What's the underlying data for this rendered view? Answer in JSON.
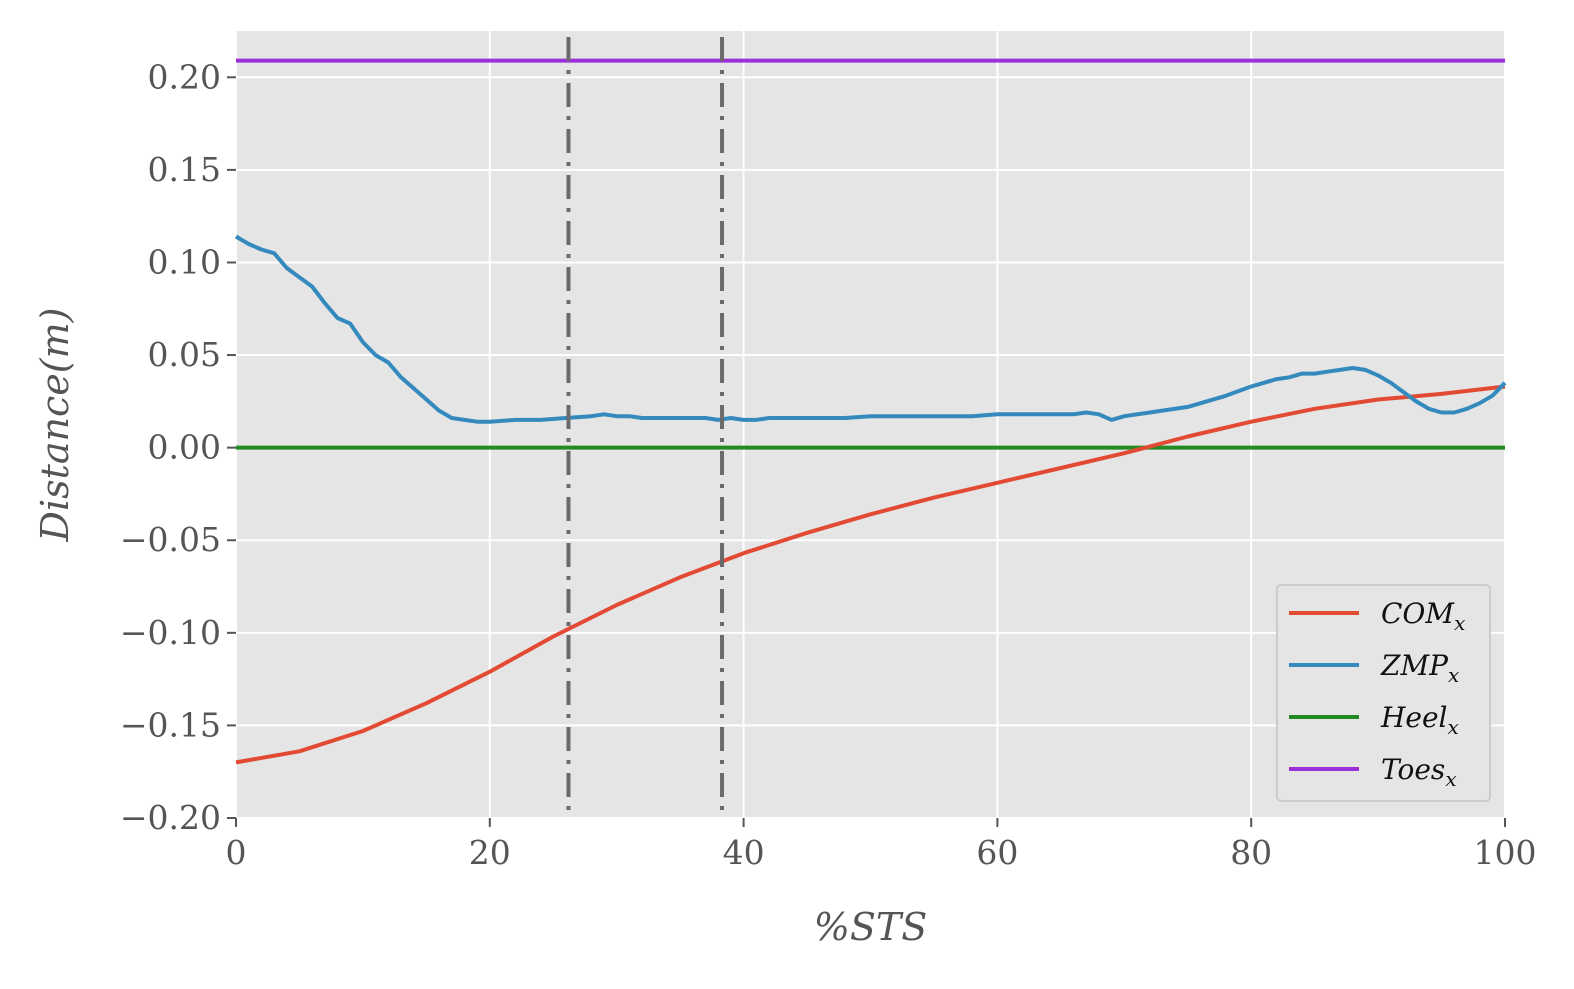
{
  "chart_data": {
    "type": "line",
    "xlabel": "%STS",
    "ylabel": "Distance(m)",
    "xlim": [
      0,
      100
    ],
    "ylim": [
      -0.2,
      0.225
    ],
    "xticks": [
      0,
      20,
      40,
      60,
      80,
      100
    ],
    "xtick_labels": [
      "0",
      "20",
      "40",
      "60",
      "80",
      "100"
    ],
    "yticks": [
      -0.2,
      -0.15,
      -0.1,
      -0.05,
      0.0,
      0.05,
      0.1,
      0.15,
      0.2
    ],
    "ytick_labels": [
      "−0.20",
      "−0.15",
      "−0.10",
      "−0.05",
      "0.00",
      "0.05",
      "0.10",
      "0.15",
      "0.20"
    ],
    "grid": true,
    "legend_position": "lower-right",
    "vlines": [
      26.2,
      38.3
    ],
    "series": [
      {
        "name": "COM",
        "subscript": "x",
        "color": "#E24A33",
        "x": [
          0,
          5,
          10,
          15,
          20,
          25,
          30,
          35,
          40,
          45,
          50,
          55,
          60,
          65,
          70,
          75,
          80,
          85,
          90,
          95,
          100
        ],
        "y": [
          -0.17,
          -0.164,
          -0.153,
          -0.138,
          -0.121,
          -0.102,
          -0.085,
          -0.07,
          -0.057,
          -0.046,
          -0.036,
          -0.027,
          -0.019,
          -0.011,
          -0.003,
          0.006,
          0.014,
          0.021,
          0.026,
          0.029,
          0.033
        ]
      },
      {
        "name": "ZMP",
        "subscript": "x",
        "color": "#348ABD",
        "x": [
          0,
          1,
          2,
          3,
          4,
          5,
          6,
          7,
          8,
          9,
          10,
          11,
          12,
          13,
          14,
          15,
          16,
          17,
          18,
          19,
          20,
          22,
          24,
          26,
          28,
          29,
          30,
          31,
          32,
          33,
          35,
          37,
          38,
          39,
          40,
          41,
          42,
          45,
          48,
          50,
          52,
          55,
          58,
          60,
          63,
          66,
          67,
          68,
          69,
          70,
          72,
          75,
          78,
          80,
          82,
          83,
          84,
          85,
          86,
          87,
          88,
          89,
          90,
          91,
          92,
          93,
          94,
          95,
          96,
          97,
          98,
          99,
          100
        ],
        "y": [
          0.114,
          0.11,
          0.107,
          0.105,
          0.097,
          0.092,
          0.087,
          0.078,
          0.07,
          0.067,
          0.057,
          0.05,
          0.046,
          0.038,
          0.032,
          0.026,
          0.02,
          0.016,
          0.015,
          0.014,
          0.014,
          0.015,
          0.015,
          0.016,
          0.017,
          0.018,
          0.017,
          0.017,
          0.016,
          0.016,
          0.016,
          0.016,
          0.015,
          0.016,
          0.015,
          0.015,
          0.016,
          0.016,
          0.016,
          0.017,
          0.017,
          0.017,
          0.017,
          0.018,
          0.018,
          0.018,
          0.019,
          0.018,
          0.015,
          0.017,
          0.019,
          0.022,
          0.028,
          0.033,
          0.037,
          0.038,
          0.04,
          0.04,
          0.041,
          0.042,
          0.043,
          0.042,
          0.039,
          0.035,
          0.03,
          0.025,
          0.021,
          0.019,
          0.019,
          0.021,
          0.024,
          0.028,
          0.035
        ]
      },
      {
        "name": "Heel",
        "subscript": "x",
        "color": "#228B22",
        "x": [
          0,
          100
        ],
        "y": [
          0.0,
          0.0
        ]
      },
      {
        "name": "Toes",
        "subscript": "x",
        "color": "#9B30D9",
        "x": [
          0,
          100
        ],
        "y": [
          0.209,
          0.209
        ]
      }
    ]
  }
}
